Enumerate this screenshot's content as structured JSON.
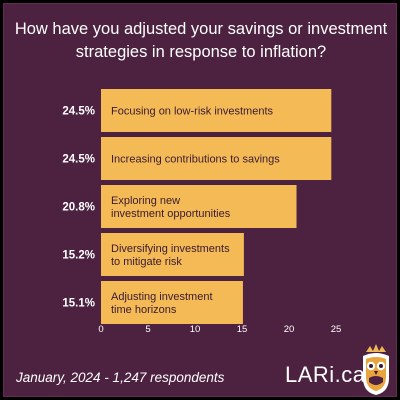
{
  "chart_data": {
    "type": "bar",
    "orientation": "horizontal",
    "title": "How have you adjusted your savings or investment strategies in response to inflation?",
    "categories": [
      [
        "Focusing on low-risk investments"
      ],
      [
        "Increasing contributions to savings"
      ],
      [
        "Exploring new",
        "investment opportunities"
      ],
      [
        "Diversifying investments",
        "to mitigate risk"
      ],
      [
        "Adjusting investment",
        "time horizons"
      ]
    ],
    "values": [
      24.5,
      24.5,
      20.8,
      15.2,
      15.1
    ],
    "value_labels": [
      "24.5%",
      "24.5%",
      "20.8%",
      "15.2%",
      "15.1%"
    ],
    "xticks": [
      0,
      5,
      10,
      15,
      20,
      25
    ],
    "xlim": [
      0,
      25
    ],
    "xlabel": "",
    "ylabel": "",
    "grid": false,
    "bar_color": "#f4ba55"
  },
  "footer": {
    "note": "January, 2024 - 1,247 respondents",
    "brand": "LARi.ca"
  },
  "colors": {
    "background": "#4d2240",
    "text": "#ffffff",
    "bar_text": "#3a1a33",
    "logo_gold": "#f0b955"
  },
  "logo": {
    "icon": "owl-icon"
  }
}
